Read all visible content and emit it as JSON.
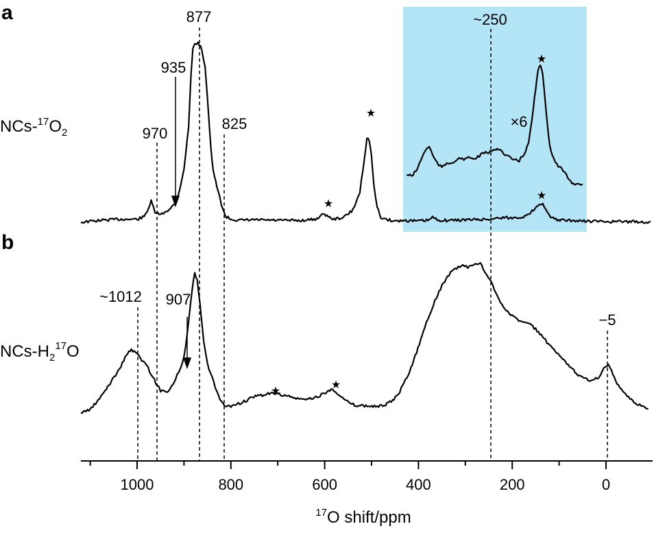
{
  "panels": [
    {
      "letter": "a",
      "label": "NCs-",
      "label_sup": "17",
      "label_tail": "O",
      "label_sub": "2",
      "label_tail2": ""
    },
    {
      "letter": "b",
      "label": "NCs-H",
      "label_sub": "2",
      "label_sup": "17",
      "label_tail": "O"
    }
  ],
  "annotations": {
    "p877": "877",
    "p935": "935",
    "p970": "970",
    "p825": "825",
    "p250": "~250",
    "x6": "×6",
    "p1012": "~1012",
    "p907": "907",
    "m5": "−5"
  },
  "colors": {
    "highlight": "#b3e5f7",
    "line": "#000000"
  },
  "chart_data": {
    "type": "line",
    "xlabel_sup": "17",
    "xlabel": "O shift/ppm",
    "xlim": [
      1125,
      -95
    ],
    "x_reversed": true,
    "xticks": [
      1000,
      800,
      600,
      400,
      200,
      0
    ],
    "xtick_labels": [
      "1000",
      "800",
      "600",
      "400",
      "200",
      "0"
    ],
    "highlight_range_ppm": [
      435,
      -40
    ],
    "reference_lines_ppm": [
      1012,
      970,
      877,
      825,
      250,
      -5
    ],
    "spinning_sidebands_ppm": {
      "a": [
        600,
        505,
        140
      ],
      "a_x6": [
        140
      ],
      "b": [
        715,
        583
      ]
    },
    "series": [
      {
        "name": "NCs-17O2",
        "x": [
          1120,
          1080,
          1040,
          1000,
          985,
          975,
          970,
          962,
          950,
          935,
          920,
          910,
          900,
          890,
          885,
          881,
          877,
          870,
          862,
          855,
          850,
          845,
          840,
          835,
          830,
          825,
          820,
          812,
          800,
          780,
          750,
          700,
          650,
          620,
          605,
          600,
          595,
          580,
          560,
          540,
          525,
          515,
          510,
          505,
          500,
          495,
          488,
          480,
          470,
          450,
          430,
          400,
          380,
          370,
          360,
          340,
          300,
          250,
          220,
          200,
          170,
          155,
          148,
          140,
          132,
          125,
          118,
          110,
          90,
          50,
          0,
          -50,
          -95
        ],
        "y": [
          0.0,
          0.03,
          0.05,
          0.05,
          0.09,
          0.25,
          0.35,
          0.17,
          0.12,
          0.2,
          0.3,
          0.52,
          0.9,
          1.6,
          2.5,
          2.9,
          3.0,
          3.0,
          2.9,
          2.6,
          2.1,
          1.5,
          1.0,
          0.75,
          0.6,
          0.45,
          0.3,
          0.1,
          0.05,
          0.03,
          0.04,
          0.03,
          0.03,
          0.05,
          0.12,
          0.15,
          0.1,
          0.05,
          0.08,
          0.2,
          0.5,
          1.1,
          1.4,
          1.38,
          1.1,
          0.6,
          0.25,
          0.08,
          0.05,
          0.02,
          0.03,
          0.02,
          0.03,
          0.08,
          0.04,
          0.03,
          0.04,
          0.05,
          0.08,
          0.07,
          0.1,
          0.2,
          0.28,
          0.32,
          0.28,
          0.15,
          0.08,
          0.05,
          0.03,
          0.02,
          0.01,
          0.01,
          0.0
        ]
      },
      {
        "name": "×6",
        "x": [
          425,
          415,
          405,
          395,
          385,
          377,
          370,
          360,
          350,
          340,
          330,
          320,
          310,
          300,
          290,
          280,
          270,
          260,
          250,
          240,
          232,
          225,
          215,
          205,
          195,
          185,
          175,
          165,
          158,
          150,
          145,
          140,
          135,
          130,
          125,
          120,
          112,
          105,
          95,
          85,
          78,
          70,
          60,
          50
        ],
        "y": [
          0.22,
          0.18,
          0.3,
          0.55,
          0.8,
          0.88,
          0.68,
          0.48,
          0.38,
          0.48,
          0.5,
          0.55,
          0.6,
          0.58,
          0.62,
          0.58,
          0.66,
          0.72,
          0.74,
          0.78,
          0.85,
          0.8,
          0.66,
          0.62,
          0.55,
          0.55,
          0.7,
          0.95,
          1.5,
          2.25,
          2.65,
          2.8,
          2.55,
          2.0,
          1.4,
          0.9,
          0.6,
          0.45,
          0.35,
          0.2,
          0.1,
          0.0,
          0.0,
          0.0
        ]
      },
      {
        "name": "NCs-H2-17O",
        "x": [
          1120,
          1100,
          1080,
          1060,
          1040,
          1020,
          1012,
          1000,
          990,
          980,
          970,
          960,
          950,
          940,
          930,
          920,
          912,
          907,
          900,
          893,
          886,
          880,
          877,
          872,
          866,
          858,
          850,
          840,
          830,
          820,
          810,
          800,
          790,
          775,
          760,
          745,
          730,
          715,
          700,
          685,
          670,
          655,
          640,
          625,
          610,
          595,
          583,
          575,
          560,
          545,
          530,
          515,
          500,
          485,
          470,
          455,
          440,
          425,
          410,
          395,
          380,
          365,
          350,
          338,
          325,
          315,
          305,
          295,
          285,
          275,
          268,
          262,
          255,
          245,
          235,
          225,
          210,
          195,
          180,
          165,
          150,
          135,
          120,
          105,
          90,
          75,
          60,
          45,
          35,
          25,
          15,
          8,
          2,
          -5,
          -12,
          -20,
          -30,
          -45,
          -60,
          -75,
          -90
        ],
        "y": [
          0.0,
          0.05,
          0.2,
          0.4,
          0.6,
          0.86,
          0.9,
          0.84,
          0.76,
          0.68,
          0.56,
          0.43,
          0.32,
          0.3,
          0.34,
          0.46,
          0.58,
          0.64,
          0.8,
          1.12,
          1.55,
          1.9,
          2.0,
          1.9,
          1.55,
          1.02,
          0.7,
          0.5,
          0.3,
          0.15,
          0.08,
          0.1,
          0.12,
          0.15,
          0.2,
          0.24,
          0.26,
          0.28,
          0.27,
          0.25,
          0.22,
          0.2,
          0.19,
          0.21,
          0.25,
          0.3,
          0.34,
          0.3,
          0.2,
          0.13,
          0.1,
          0.1,
          0.1,
          0.09,
          0.12,
          0.17,
          0.3,
          0.5,
          0.75,
          1.05,
          1.35,
          1.6,
          1.82,
          1.95,
          2.05,
          2.08,
          2.1,
          2.08,
          2.12,
          2.12,
          2.14,
          2.06,
          1.97,
          1.87,
          1.72,
          1.58,
          1.45,
          1.36,
          1.3,
          1.28,
          1.2,
          1.08,
          0.96,
          0.85,
          0.75,
          0.65,
          0.55,
          0.5,
          0.47,
          0.47,
          0.52,
          0.6,
          0.66,
          0.7,
          0.6,
          0.46,
          0.34,
          0.24,
          0.15,
          0.1,
          0.06
        ]
      }
    ]
  }
}
